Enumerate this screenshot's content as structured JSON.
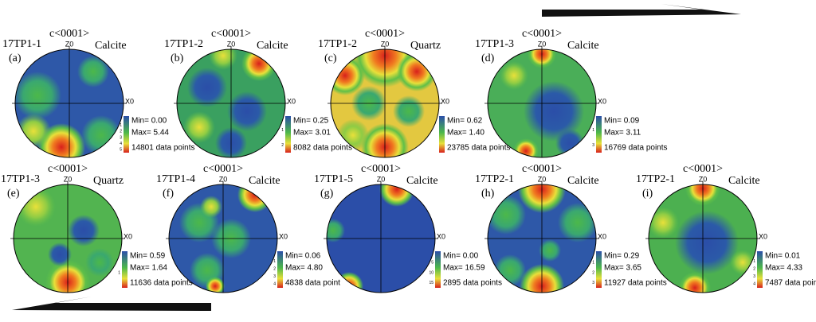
{
  "panels": [
    {
      "sample": "17TP1-1",
      "letter": "(a)",
      "axis": "c<0001>",
      "mineral": "Calcite",
      "z": "Z0",
      "x": "X0",
      "min": "Min= 0.00",
      "max": "Max= 5.44",
      "points": "14801 data points",
      "scale": [
        "1",
        "2",
        "3",
        "4",
        "5"
      ]
    },
    {
      "sample": "17TP1-2",
      "letter": "(b)",
      "axis": "c<0001>",
      "mineral": "Calcite",
      "z": "Z0",
      "x": "X0",
      "min": "Min= 0.25",
      "max": "Max= 3.01",
      "points": "8082 data points",
      "scale": [
        "1",
        "2"
      ]
    },
    {
      "sample": "17TP1-2",
      "letter": "(c)",
      "axis": "c<0001>",
      "mineral": "Quartz",
      "z": "Z0",
      "x": "X0",
      "min": "Min= 0.62",
      "max": "Max= 1.40",
      "points": "23785 data points",
      "scale": []
    },
    {
      "sample": "17TP1-3",
      "letter": "(d)",
      "axis": "c<0001>",
      "mineral": "Calcite",
      "z": "Z0",
      "x": "X0",
      "min": "Min= 0.09",
      "max": "Max= 3.11",
      "points": "16769 data points",
      "scale": [
        "1",
        "3"
      ]
    },
    {
      "sample": "17TP1-3",
      "letter": "(e)",
      "axis": "c<0001>",
      "mineral": "Quartz",
      "z": "Z0",
      "x": "X0",
      "min": "Min= 0.59",
      "max": "Max= 1.64",
      "points": "11636 data points",
      "scale": [
        "1"
      ]
    },
    {
      "sample": "17TP1-4",
      "letter": "(f)",
      "axis": "c<0001>",
      "mineral": "Calcite",
      "z": "Z0",
      "x": "X0",
      "min": "Min= 0.06",
      "max": "Max= 4.80",
      "points": "4838 data point",
      "scale": [
        "1",
        "2",
        "3",
        "4"
      ]
    },
    {
      "sample": "17TP1-5",
      "letter": "(g)",
      "axis": "c<0001>",
      "mineral": "Calcite",
      "z": "Z0",
      "x": "X0",
      "min": "Min= 0.00",
      "max": "Max= 16.59",
      "points": "2895 data points",
      "scale": [
        "5",
        "10",
        "15"
      ]
    },
    {
      "sample": "17TP2-1",
      "letter": "(h)",
      "axis": "c<0001>",
      "mineral": "Calcite",
      "z": "Z0",
      "x": "X0",
      "min": "Min= 0.29",
      "max": "Max= 3.65",
      "points": "11927 data points",
      "scale": [
        "1",
        "2",
        "3"
      ]
    },
    {
      "sample": "17TP2-1",
      "letter": "(i)",
      "axis": "c<0001>",
      "mineral": "Calcite",
      "z": "Z0",
      "x": "X0",
      "min": "Min= 0.01",
      "max": "Max= 4.33",
      "points": "7487 data points",
      "scale": [
        "1",
        "2",
        "3",
        "4"
      ]
    }
  ]
}
